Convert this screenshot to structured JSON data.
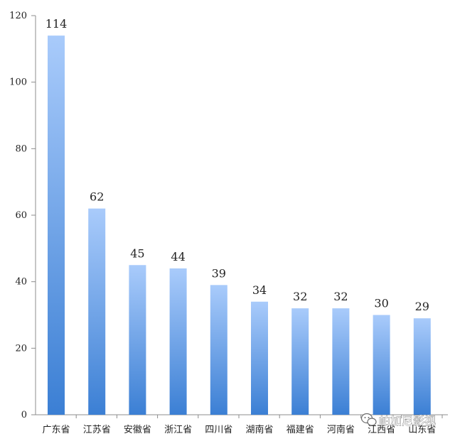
{
  "chart_data": {
    "type": "bar",
    "title": "",
    "xlabel": "",
    "ylabel": "",
    "categories": [
      "广东省",
      "江苏省",
      "安徽省",
      "浙江省",
      "四川省",
      "湖南省",
      "福建省",
      "河南省",
      "江西省",
      "山东省"
    ],
    "values": [
      114,
      62,
      45,
      44,
      39,
      34,
      32,
      32,
      30,
      29
    ],
    "data_labels": [
      "114",
      "62",
      "45",
      "44",
      "39",
      "34",
      "32",
      "32",
      "30",
      "29"
    ],
    "ylim": [
      0,
      120
    ],
    "yticks": [
      0,
      20,
      40,
      60,
      80,
      100,
      120
    ],
    "ytick_labels": [
      "0",
      "20",
      "40",
      "60",
      "80",
      "100",
      "120"
    ],
    "grid": false,
    "legend": "none",
    "colors": {
      "bar_top": "#a9cbfb",
      "bar_bottom": "#3b7fd4",
      "axis": "#8c8c8c"
    }
  },
  "watermark": {
    "text": "帕加尼影视",
    "icon": "wechat-icon"
  }
}
